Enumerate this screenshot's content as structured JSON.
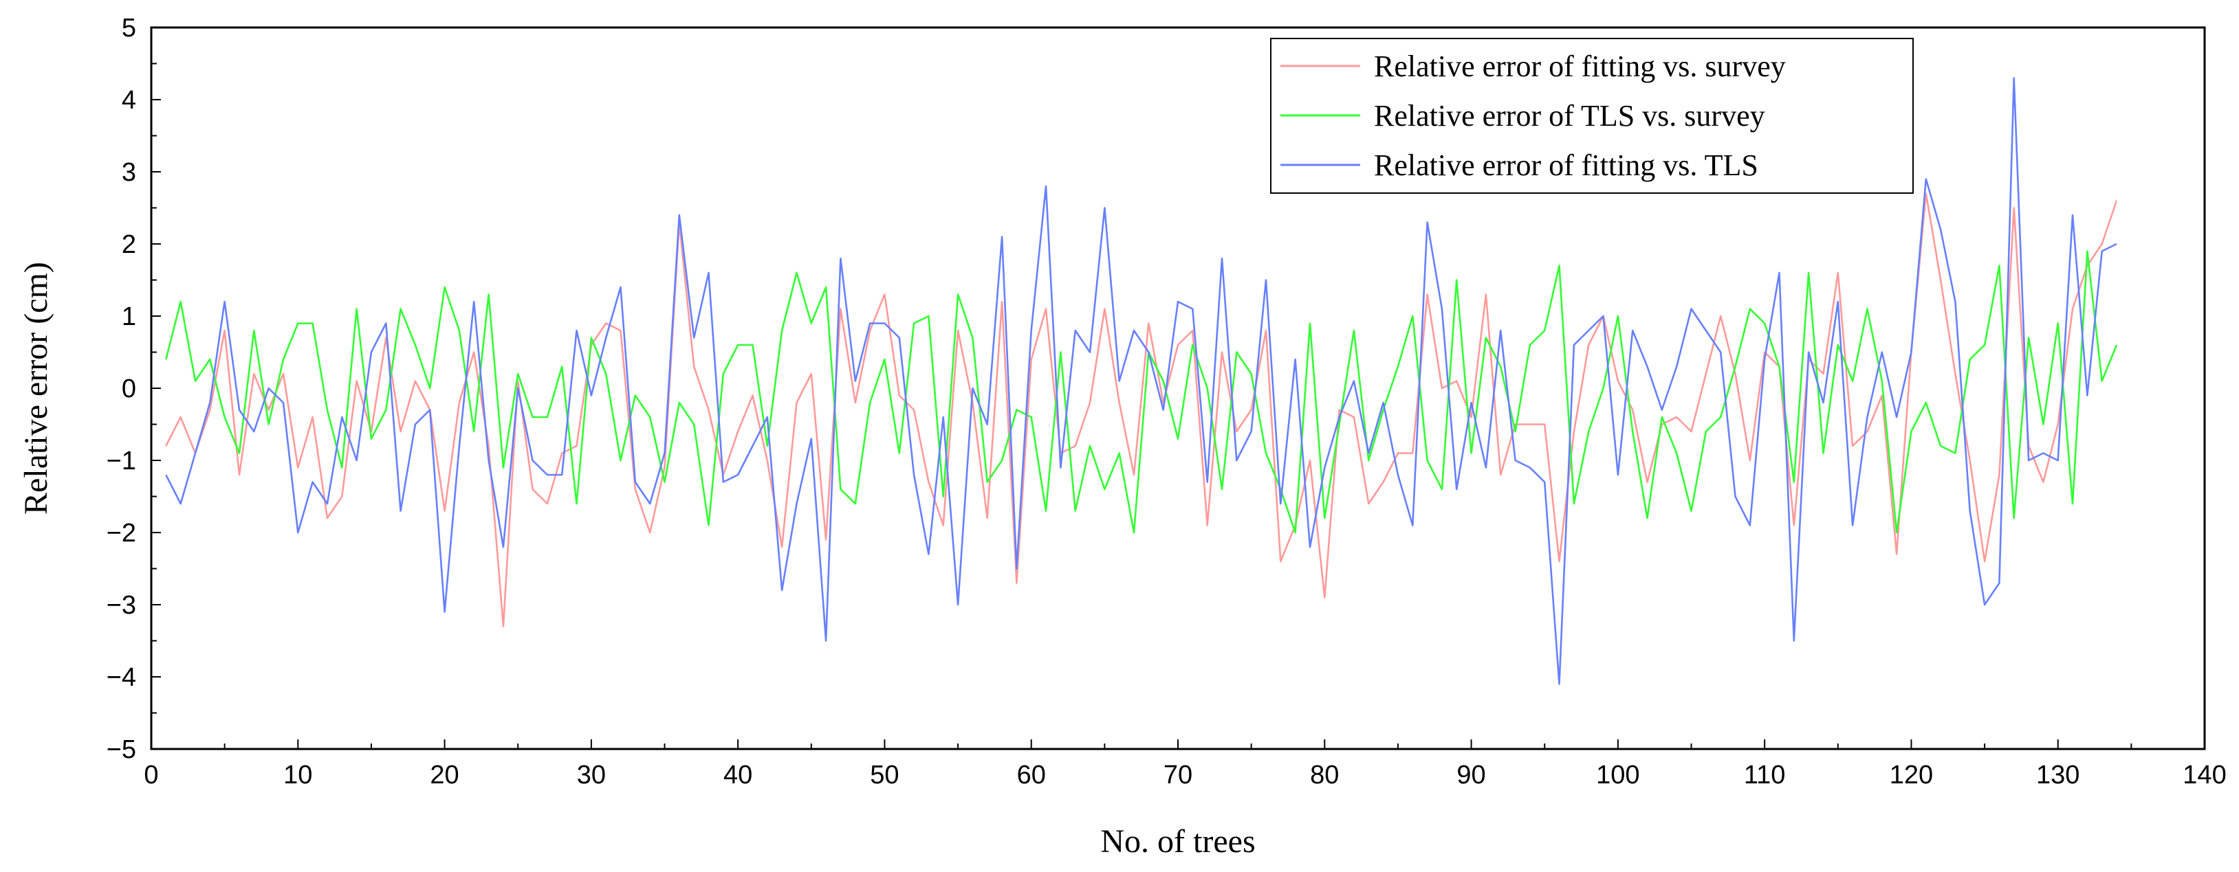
{
  "chart_data": {
    "type": "line",
    "title": "",
    "xlabel": "No. of trees",
    "ylabel": "Relative error (cm)",
    "xlim": [
      0,
      140
    ],
    "ylim": [
      -5,
      5
    ],
    "x_ticks": [
      0,
      10,
      20,
      30,
      40,
      50,
      60,
      70,
      80,
      90,
      100,
      110,
      120,
      130,
      140
    ],
    "y_ticks": [
      5,
      4,
      3,
      2,
      1,
      0,
      -1,
      -2,
      -3,
      -4,
      -5
    ],
    "y_tick_labels": [
      "5",
      "4",
      "3",
      "2",
      "1",
      "0",
      "−1",
      "−2",
      "−3",
      "−4",
      "−5"
    ],
    "grid": false,
    "legend_position": "top-right",
    "x_start": 1,
    "series": [
      {
        "name": "Relative error of fitting vs. survey",
        "color": "#ff9a9a",
        "values": [
          -0.8,
          -0.4,
          -0.9,
          -0.3,
          0.8,
          -1.2,
          0.2,
          -0.3,
          0.2,
          -1.1,
          -0.4,
          -1.8,
          -1.5,
          0.1,
          -0.6,
          0.7,
          -0.6,
          0.1,
          -0.3,
          -1.7,
          -0.2,
          0.5,
          -0.8,
          -3.3,
          0.1,
          -1.4,
          -1.6,
          -0.9,
          -0.8,
          0.6,
          0.9,
          0.8,
          -1.4,
          -2.0,
          -1.1,
          2.3,
          0.3,
          -0.3,
          -1.2,
          -0.6,
          -0.1,
          -1.0,
          -2.2,
          -0.2,
          0.2,
          -2.1,
          1.1,
          -0.2,
          0.8,
          1.3,
          -0.1,
          -0.3,
          -1.3,
          -1.9,
          0.8,
          -0.2,
          -1.8,
          1.2,
          -2.7,
          0.4,
          1.1,
          -0.9,
          -0.8,
          -0.2,
          1.1,
          -0.2,
          -1.2,
          0.9,
          -0.2,
          0.6,
          0.8,
          -1.9,
          0.5,
          -0.6,
          -0.3,
          0.8,
          -2.4,
          -1.9,
          -1.0,
          -2.9,
          -0.3,
          -0.4,
          -1.6,
          -1.3,
          -0.9,
          -0.9,
          1.3,
          0.0,
          0.1,
          -0.4,
          1.3,
          -1.2,
          -0.5,
          -0.5,
          -0.5,
          -2.4,
          -0.6,
          0.6,
          1.0,
          0.1,
          -0.3,
          -1.3,
          -0.5,
          -0.4,
          -0.6,
          0.2,
          1.0,
          0.2,
          -1.0,
          0.5,
          0.3,
          -1.9,
          0.4,
          0.2,
          1.6,
          -0.8,
          -0.6,
          -0.1,
          -2.3,
          0.5,
          2.7,
          1.5,
          0.2,
          -1.0,
          -2.4,
          -1.2,
          2.5,
          -0.8,
          -1.3,
          -0.5,
          1.1,
          1.7,
          2.0,
          2.6
        ]
      },
      {
        "name": "Relative error of TLS vs. survey",
        "color": "#33ff33",
        "values": [
          0.4,
          1.2,
          0.1,
          0.4,
          -0.4,
          -0.9,
          0.8,
          -0.5,
          0.4,
          0.9,
          0.9,
          -0.3,
          -1.1,
          1.1,
          -0.7,
          -0.3,
          1.1,
          0.6,
          0.0,
          1.4,
          0.8,
          -0.6,
          1.3,
          -1.1,
          0.2,
          -0.4,
          -0.4,
          0.3,
          -1.6,
          0.7,
          0.2,
          -1.0,
          -0.1,
          -0.4,
          -1.3,
          -0.2,
          -0.5,
          -1.9,
          0.2,
          0.6,
          0.6,
          -0.8,
          0.8,
          1.6,
          0.9,
          1.4,
          -1.4,
          -1.6,
          -0.2,
          0.4,
          -0.9,
          0.9,
          1.0,
          -1.5,
          1.3,
          0.7,
          -1.3,
          -1.0,
          -0.3,
          -0.4,
          -1.7,
          0.5,
          -1.7,
          -0.8,
          -1.4,
          -0.9,
          -2.0,
          0.5,
          0.1,
          -0.7,
          0.6,
          0.0,
          -1.4,
          0.5,
          0.2,
          -0.9,
          -1.4,
          -2.0,
          0.9,
          -1.8,
          -0.5,
          0.8,
          -1.0,
          -0.3,
          0.3,
          1.0,
          -1.0,
          -1.4,
          1.5,
          -0.9,
          0.7,
          0.3,
          -0.6,
          0.6,
          0.8,
          1.7,
          -1.6,
          -0.6,
          0.0,
          1.0,
          -0.6,
          -1.8,
          -0.4,
          -0.9,
          -1.7,
          -0.6,
          -0.4,
          0.3,
          1.1,
          0.9,
          0.3,
          -1.3,
          1.6,
          -0.9,
          0.6,
          0.1,
          1.1,
          0.1,
          -2.0,
          -0.6,
          -0.2,
          -0.8,
          -0.9,
          0.4,
          0.6,
          1.7,
          -1.8,
          0.7,
          -0.5,
          0.9,
          -1.6,
          1.9,
          0.1,
          0.6
        ]
      },
      {
        "name": "Relative error of fitting vs. TLS",
        "color": "#6680ff",
        "values": [
          -1.2,
          -1.6,
          -0.9,
          -0.2,
          1.2,
          -0.3,
          -0.6,
          0.0,
          -0.2,
          -2.0,
          -1.3,
          -1.6,
          -0.4,
          -1.0,
          0.5,
          0.9,
          -1.7,
          -0.5,
          -0.3,
          -3.1,
          -0.8,
          1.2,
          -1.0,
          -2.2,
          0.0,
          -1.0,
          -1.2,
          -1.2,
          0.8,
          -0.1,
          0.7,
          1.4,
          -1.3,
          -1.6,
          -0.9,
          2.4,
          0.7,
          1.6,
          -1.3,
          -1.2,
          -0.8,
          -0.4,
          -2.8,
          -1.6,
          -0.7,
          -3.5,
          1.8,
          0.1,
          0.9,
          0.9,
          0.7,
          -1.2,
          -2.3,
          -0.4,
          -3.0,
          0.0,
          -0.5,
          2.1,
          -2.5,
          0.8,
          2.8,
          -1.1,
          0.8,
          0.5,
          2.5,
          0.1,
          0.8,
          0.5,
          -0.3,
          1.2,
          1.1,
          -1.3,
          1.8,
          -1.0,
          -0.6,
          1.5,
          -1.6,
          0.4,
          -2.2,
          -1.1,
          -0.4,
          0.1,
          -0.9,
          -0.2,
          -1.2,
          -1.9,
          2.3,
          1.1,
          -1.4,
          -0.2,
          -1.1,
          0.8,
          -1.0,
          -1.1,
          -1.3,
          -4.1,
          0.6,
          0.8,
          1.0,
          -1.2,
          0.8,
          0.3,
          -0.3,
          0.3,
          1.1,
          0.8,
          0.5,
          -1.5,
          -1.9,
          0.4,
          1.6,
          -3.5,
          0.5,
          -0.2,
          1.2,
          -1.9,
          -0.4,
          0.5,
          -0.4,
          0.5,
          2.9,
          2.2,
          1.2,
          -1.7,
          -3.0,
          -2.7,
          4.3,
          -1.0,
          -0.9,
          -1.0,
          2.4,
          -0.1,
          1.9,
          2.0
        ]
      }
    ]
  }
}
